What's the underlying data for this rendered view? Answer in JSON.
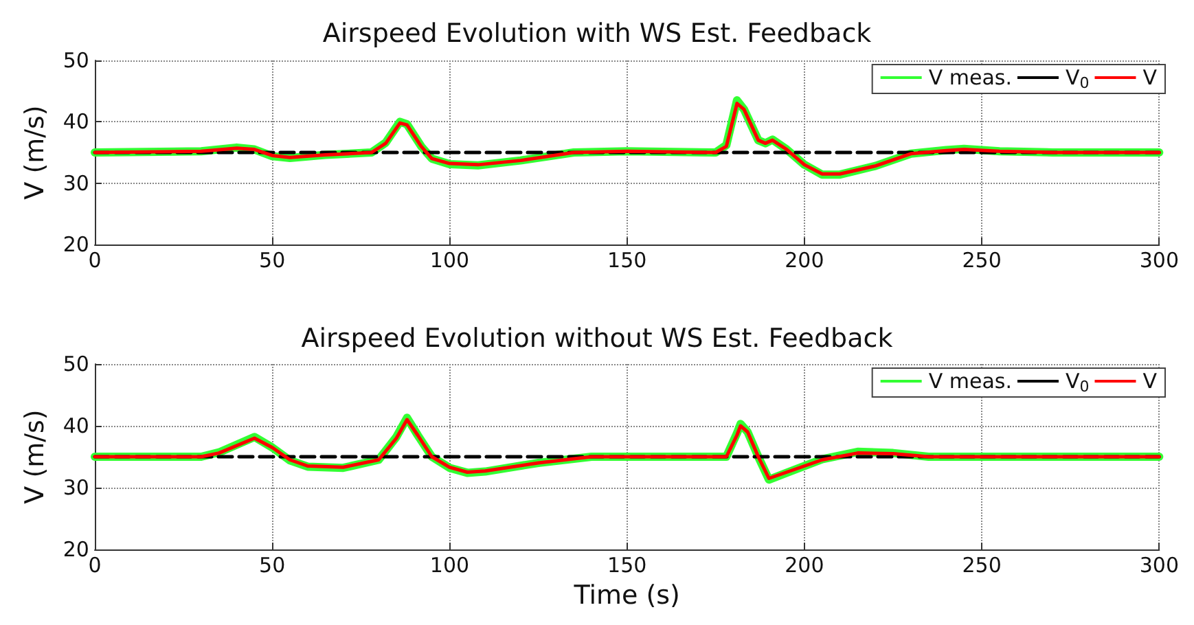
{
  "chart_data": [
    {
      "type": "line",
      "title": "Airspeed Evolution with WS Est. Feedback",
      "ylabel": "V (m/s)",
      "xlim": [
        0,
        300
      ],
      "xticks": [
        0,
        50,
        100,
        150,
        200,
        250,
        300
      ],
      "ylim": [
        20,
        50
      ],
      "yticks": [
        20,
        30,
        40,
        50
      ],
      "grid": true,
      "legend": "top right",
      "marker": "none",
      "series": [
        {
          "name": "V meas.",
          "color": "#33ff33",
          "x": [
            0,
            30,
            40,
            45,
            50,
            55,
            65,
            78,
            82,
            86,
            88,
            92,
            95,
            100,
            108,
            120,
            135,
            150,
            175,
            178,
            181,
            183,
            187,
            189,
            191,
            195,
            200,
            205,
            210,
            220,
            230,
            240,
            245,
            255,
            270,
            300
          ],
          "values": [
            35,
            35.2,
            35.8,
            35.5,
            34.4,
            34.1,
            34.6,
            35,
            36.6,
            40,
            39.6,
            36,
            34,
            33.1,
            32.9,
            33.7,
            35,
            35.2,
            35,
            36.2,
            43.5,
            42,
            37,
            36.5,
            37.1,
            35.5,
            33,
            31.4,
            31.4,
            32.8,
            34.8,
            35.4,
            35.6,
            35.2,
            35,
            35
          ]
        },
        {
          "name": "V$_{0}$",
          "color": "#000000",
          "line_style": "dashed",
          "x": [
            0,
            300
          ],
          "values": [
            35,
            35
          ]
        },
        {
          "name": "V",
          "color": "#ff0000",
          "x": [
            0,
            30,
            40,
            45,
            50,
            55,
            65,
            78,
            82,
            86,
            88,
            92,
            95,
            100,
            108,
            120,
            135,
            150,
            175,
            178,
            181,
            183,
            187,
            189,
            191,
            195,
            200,
            205,
            210,
            220,
            230,
            240,
            245,
            255,
            270,
            300
          ],
          "values": [
            35,
            35.2,
            35.7,
            35.5,
            34.5,
            34.2,
            34.6,
            35,
            36.5,
            39.8,
            39.5,
            36,
            34,
            33.2,
            33,
            33.7,
            35,
            35.2,
            35,
            36,
            43,
            42,
            37,
            36.5,
            37,
            35.5,
            33,
            31.5,
            31.5,
            32.8,
            34.8,
            35.3,
            35.5,
            35.2,
            35,
            35
          ]
        }
      ]
    },
    {
      "type": "line",
      "title": "Airspeed Evolution without WS Est. Feedback",
      "xlabel": "Time (s)",
      "ylabel": "V (m/s)",
      "xlim": [
        0,
        300
      ],
      "xticks": [
        0,
        50,
        100,
        150,
        200,
        250,
        300
      ],
      "ylim": [
        20,
        50
      ],
      "yticks": [
        20,
        30,
        40,
        50
      ],
      "grid": true,
      "legend": "top right",
      "marker": "none",
      "series": [
        {
          "name": "V meas.",
          "color": "#33ff33",
          "x": [
            0,
            30,
            35,
            45,
            50,
            55,
            60,
            70,
            80,
            85,
            88,
            91,
            95,
            100,
            105,
            110,
            125,
            140,
            150,
            178,
            181,
            182,
            184,
            187,
            190,
            195,
            205,
            215,
            225,
            235,
            300
          ],
          "values": [
            35,
            35,
            35.7,
            38.2,
            36.5,
            34.4,
            33.4,
            33.2,
            34.5,
            38.2,
            41.3,
            38.5,
            35,
            33.2,
            32.4,
            32.6,
            34,
            35,
            35,
            35,
            38.8,
            40.3,
            39,
            35,
            31.3,
            32.4,
            34.6,
            35.8,
            35.6,
            35,
            35
          ]
        },
        {
          "name": "V$_{0}$",
          "color": "#000000",
          "line_style": "dashed",
          "x": [
            0,
            300
          ],
          "values": [
            35,
            35
          ]
        },
        {
          "name": "V",
          "color": "#ff0000",
          "x": [
            0,
            30,
            35,
            45,
            50,
            55,
            60,
            70,
            80,
            85,
            88,
            91,
            95,
            100,
            105,
            110,
            125,
            140,
            150,
            178,
            181,
            182,
            184,
            187,
            190,
            195,
            205,
            215,
            225,
            235,
            300
          ],
          "values": [
            35,
            35,
            35.6,
            38,
            36.5,
            34.5,
            33.5,
            33.3,
            34.5,
            38,
            41,
            38.5,
            35,
            33.3,
            32.5,
            32.7,
            34,
            35,
            35,
            35,
            38.5,
            40,
            39,
            35,
            31.5,
            32.5,
            34.5,
            35.6,
            35.5,
            35,
            35
          ]
        }
      ]
    }
  ]
}
